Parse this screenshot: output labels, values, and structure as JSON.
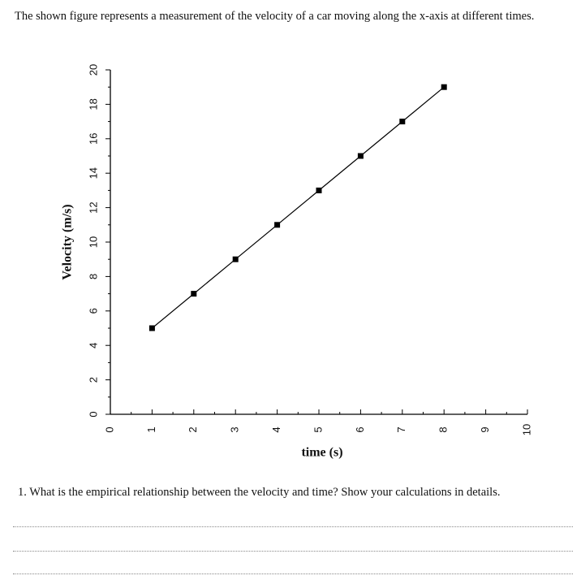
{
  "intro": "The shown figure represents a measurement of the velocity of a car moving along the x-axis at different times.",
  "chart_data": {
    "type": "line",
    "xlabel": "time (s)",
    "ylabel": "Velocity (m/s)",
    "x": [
      1,
      2,
      3,
      4,
      5,
      6,
      7,
      8
    ],
    "series": [
      {
        "color": "#000000",
        "values": [
          5,
          7,
          9,
          11,
          13,
          15,
          17,
          19
        ]
      }
    ],
    "xlim": [
      0,
      10
    ],
    "xticks": [
      0,
      1,
      2,
      3,
      4,
      5,
      6,
      7,
      8,
      9,
      10
    ],
    "ylim": [
      0,
      20
    ],
    "yticks": [
      0,
      2,
      4,
      6,
      8,
      10,
      12,
      14,
      16,
      18,
      20
    ]
  },
  "question": "1.  What is the empirical relationship between the velocity and time? Show your calculations in details."
}
